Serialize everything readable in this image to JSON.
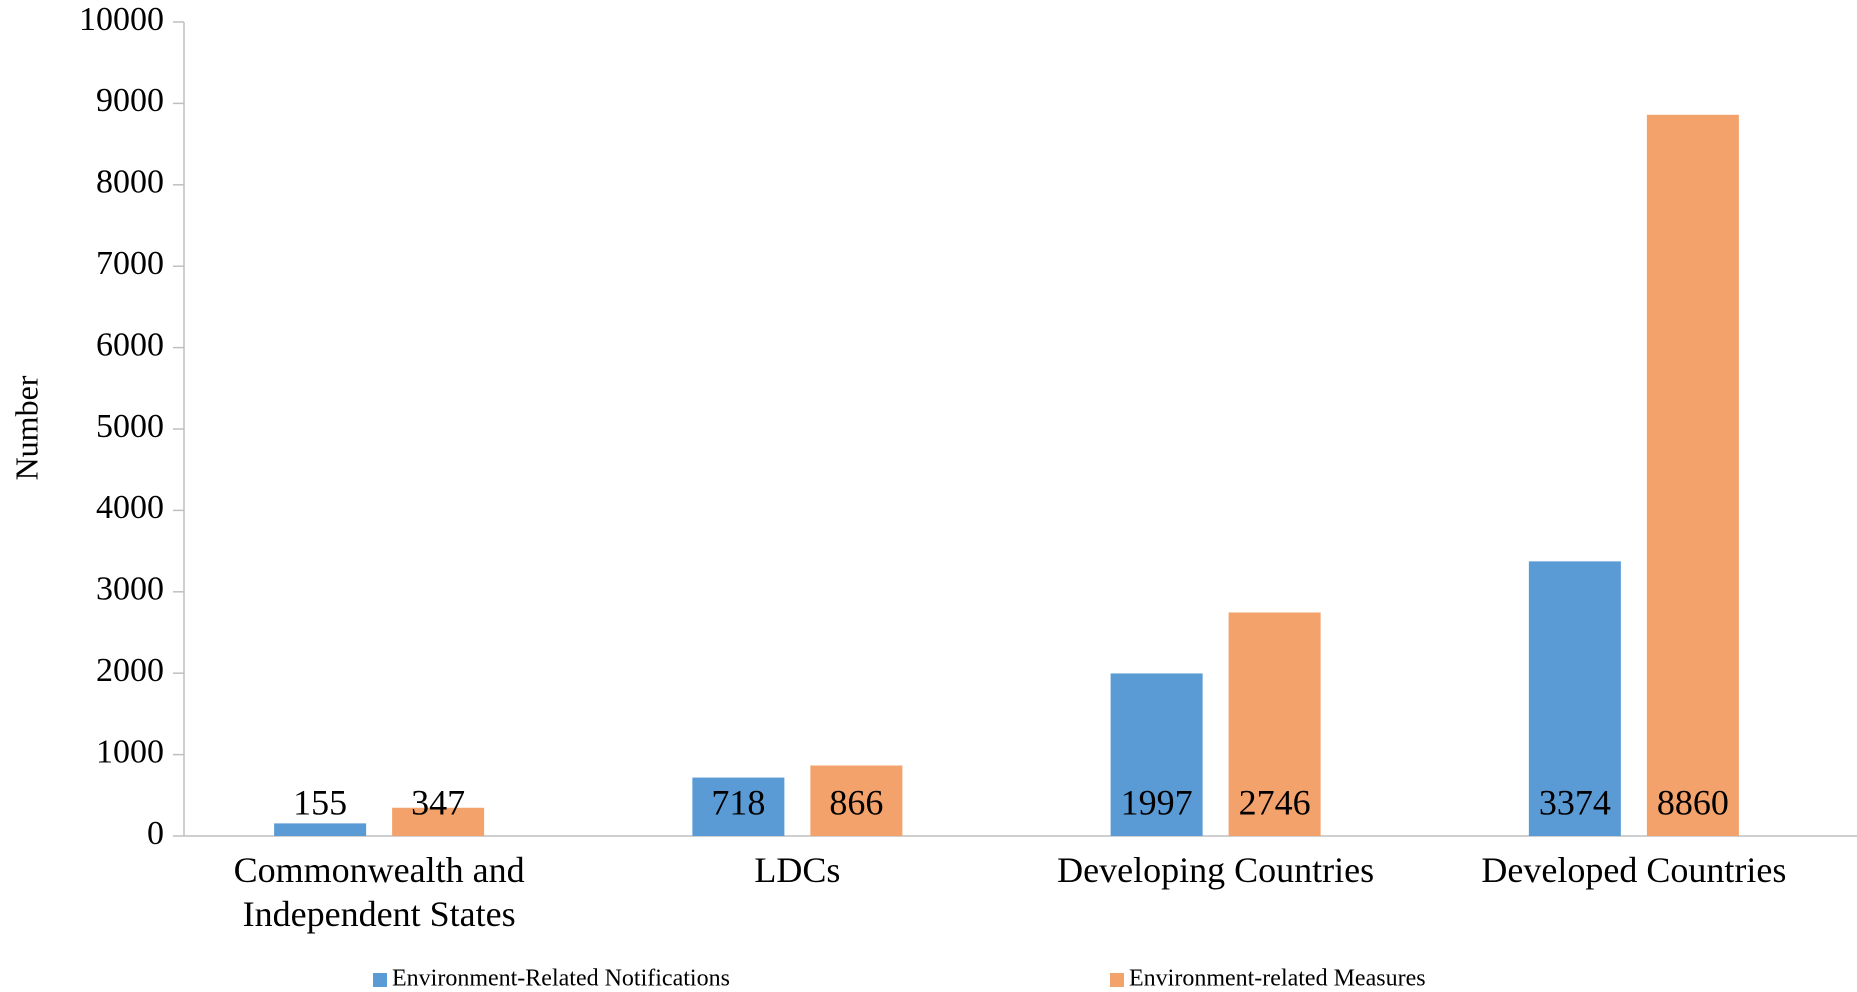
{
  "chart_data": {
    "type": "bar",
    "y_label": "Number",
    "categories": [
      "Commonwealth and Independent States",
      "LDCs",
      "Developing Countries",
      "Developed Countries"
    ],
    "series": [
      {
        "name": "Environment-Related Notifications",
        "color": "#5b9bd5",
        "values": [
          155,
          718,
          1997,
          3374
        ]
      },
      {
        "name": "Environment-related Measures",
        "color": "#f4a26b",
        "values": [
          347,
          866,
          2746,
          8860
        ]
      }
    ],
    "ylim": [
      0,
      10000
    ],
    "yticks": [
      0,
      1000,
      2000,
      3000,
      4000,
      5000,
      6000,
      7000,
      8000,
      9000,
      10000
    ],
    "grid": false,
    "legend": "bottom"
  }
}
